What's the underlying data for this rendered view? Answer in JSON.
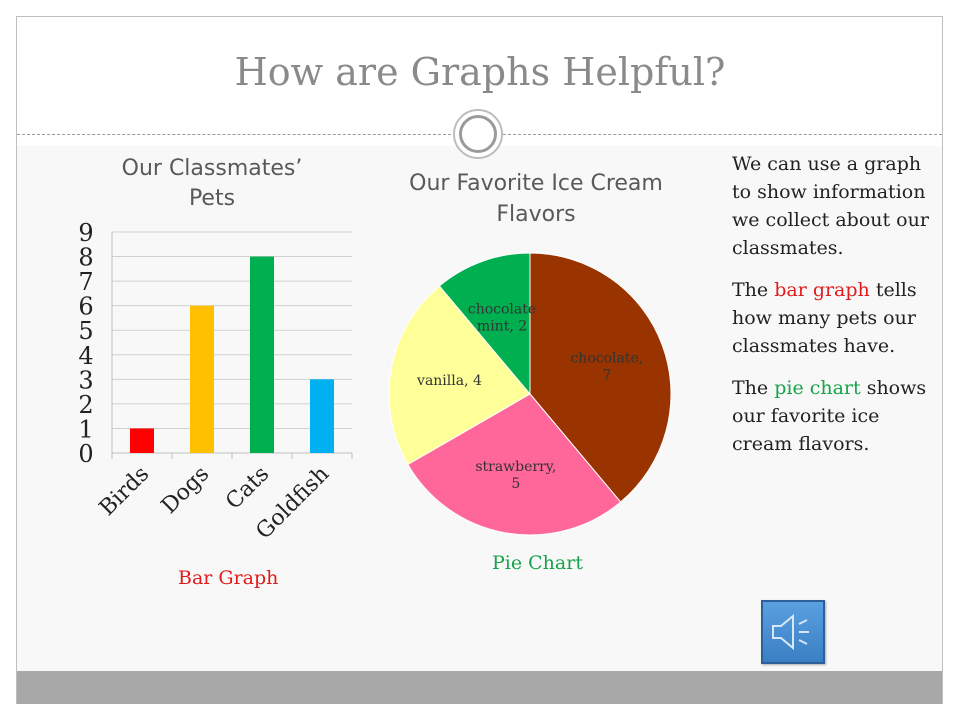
{
  "slide": {
    "title": "How are Graphs Helpful?"
  },
  "description": {
    "paragraph1": "We can use a graph to show information we collect about our classmates.",
    "paragraph2_pre": "The ",
    "paragraph2_highlight": "bar graph",
    "paragraph2_post": " tells how many pets our classmates have.",
    "paragraph3_pre": "The ",
    "paragraph3_highlight": "pie chart",
    "paragraph3_post": " shows our favorite ice cream flavors."
  },
  "captions": {
    "bar": "Bar Graph",
    "pie": "Pie Chart"
  },
  "sound_button": {
    "icon": "speaker-icon"
  },
  "colors": {
    "bar_caption": "#e11b1b",
    "pie_caption": "#16a34a"
  },
  "chart_data": [
    {
      "type": "bar",
      "title": "Our Classmates’ Pets",
      "title_lines": [
        "Our Classmates’",
        "Pets"
      ],
      "categories": [
        "Birds",
        "Dogs",
        "Cats",
        "Goldfish"
      ],
      "values": [
        1,
        6,
        8,
        3
      ],
      "colors": [
        "#ff0000",
        "#ffc000",
        "#00b050",
        "#00b0f0"
      ],
      "ylim": [
        0,
        9
      ],
      "yticks": [
        0,
        1,
        2,
        3,
        4,
        5,
        6,
        7,
        8,
        9
      ],
      "grid": true,
      "legend": "none",
      "xlabel": "",
      "ylabel": ""
    },
    {
      "type": "pie",
      "title": "Our Favorite Ice Cream Flavors",
      "title_lines": [
        "Our Favorite Ice Cream",
        "Flavors"
      ],
      "slices": [
        {
          "label_lines": [
            "chocolate,",
            "7"
          ],
          "value": 7,
          "color": "#993300"
        },
        {
          "label_lines": [
            "strawberry,",
            "5"
          ],
          "value": 5,
          "color": "#ff6699"
        },
        {
          "label_lines": [
            "vanilla, 4"
          ],
          "value": 4,
          "color": "#ffff99"
        },
        {
          "label_lines": [
            "chocolate",
            "mint, 2"
          ],
          "value": 2,
          "color": "#00b050"
        }
      ],
      "legend": "none"
    }
  ]
}
